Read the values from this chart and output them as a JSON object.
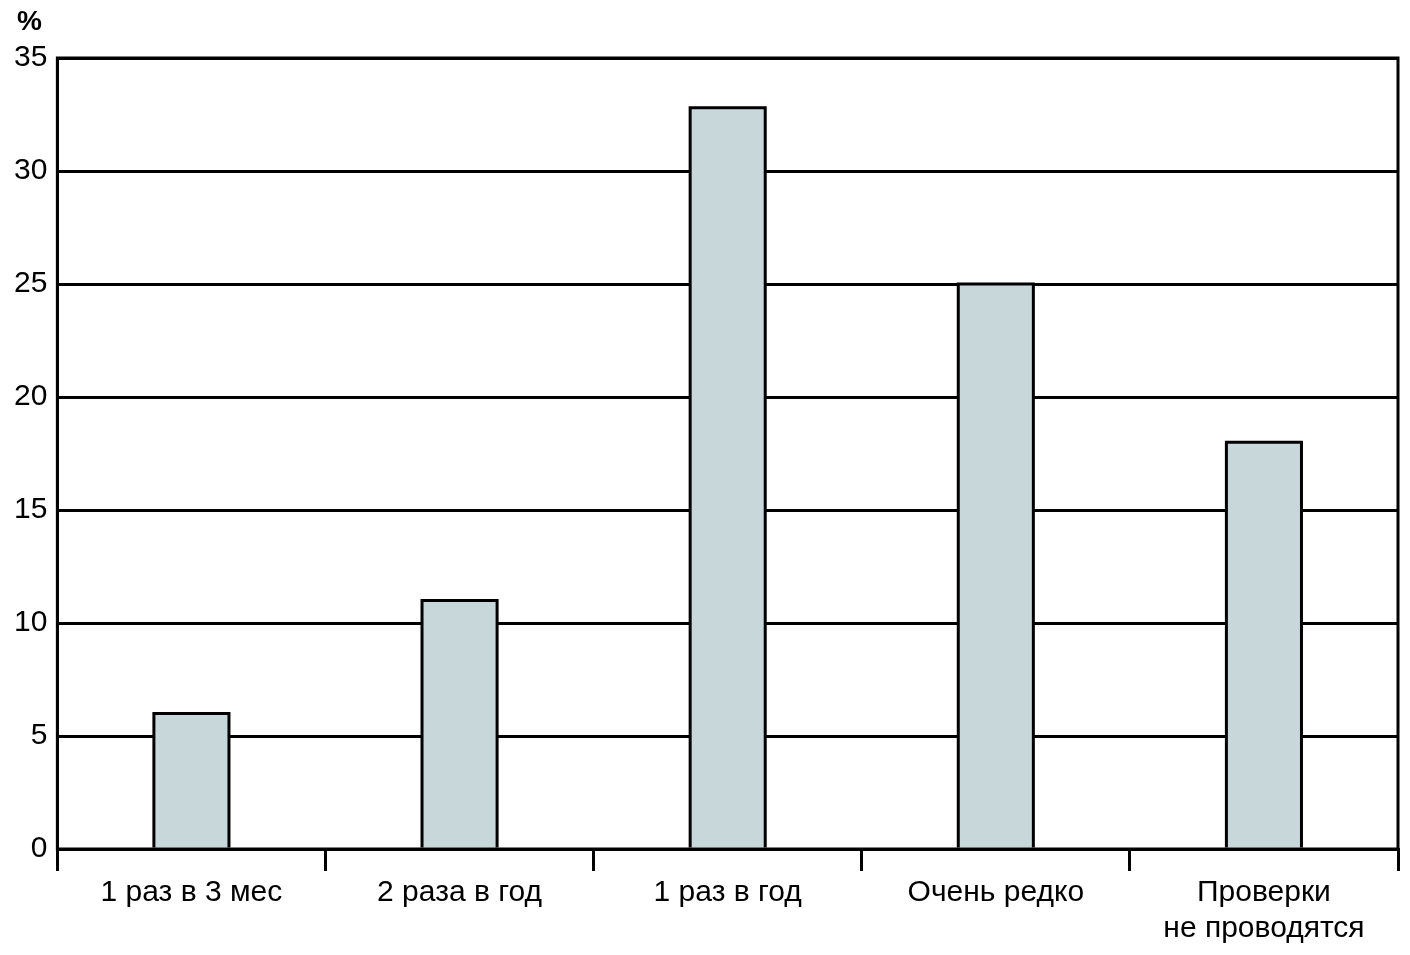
{
  "chart_data": {
    "type": "bar",
    "ylabel": "%",
    "categories": [
      "1 раз в 3 мес",
      "2 раза в год",
      "1 раз в год",
      "Очень редко",
      "Проверки не проводятся"
    ],
    "values": [
      6,
      11,
      32.8,
      25,
      18
    ],
    "color": "#c8d8da",
    "ylim": [
      0,
      35
    ],
    "yticks": [
      0,
      5,
      10,
      15,
      20,
      25,
      30,
      35
    ],
    "grid": "y",
    "legend": false
  }
}
